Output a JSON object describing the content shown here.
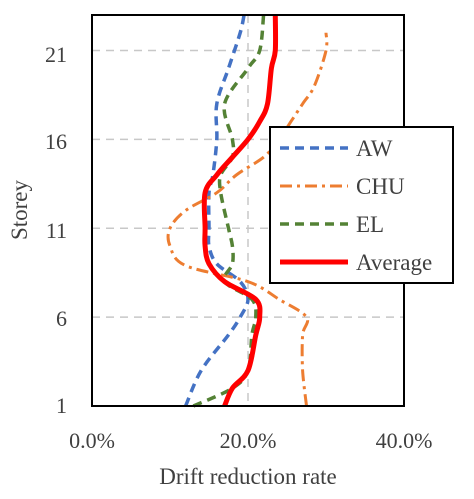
{
  "chart_data": {
    "type": "line",
    "xlabel": "Drift reduction rate",
    "ylabel": "Storey",
    "xlim": [
      0,
      0.4
    ],
    "ylim": [
      1,
      23
    ],
    "x_ticks": [
      "0.0%",
      "20.0%",
      "40.0%"
    ],
    "y_ticks": [
      "1",
      "6",
      "11",
      "16",
      "21"
    ],
    "grid": "dashed gray at x = 20% and at storeys 6, 11, 16, 21",
    "legend_position": "right, inside plot",
    "series": [
      {
        "name": "AW",
        "color": "#4472C4",
        "style": "dash",
        "points": [
          [
            0.12,
            1
          ],
          [
            0.14,
            3
          ],
          [
            0.175,
            5
          ],
          [
            0.19,
            6
          ],
          [
            0.2,
            7
          ],
          [
            0.19,
            8
          ],
          [
            0.16,
            9
          ],
          [
            0.15,
            10
          ],
          [
            0.15,
            11
          ],
          [
            0.15,
            13
          ],
          [
            0.155,
            14
          ],
          [
            0.16,
            16
          ],
          [
            0.16,
            18
          ],
          [
            0.175,
            20
          ],
          [
            0.19,
            22
          ],
          [
            0.195,
            23
          ]
        ]
      },
      {
        "name": "CHU",
        "color": "#ED7D31",
        "style": "dashdot",
        "points": [
          [
            0.275,
            1
          ],
          [
            0.27,
            3
          ],
          [
            0.27,
            5
          ],
          [
            0.275,
            6
          ],
          [
            0.24,
            7
          ],
          [
            0.2,
            8
          ],
          [
            0.12,
            8.9
          ],
          [
            0.1,
            10
          ],
          [
            0.1,
            11
          ],
          [
            0.12,
            12
          ],
          [
            0.16,
            13
          ],
          [
            0.185,
            14
          ],
          [
            0.22,
            15
          ],
          [
            0.24,
            16
          ],
          [
            0.255,
            17
          ],
          [
            0.27,
            18
          ],
          [
            0.285,
            19
          ],
          [
            0.3,
            21
          ],
          [
            0.3,
            22
          ]
        ]
      },
      {
        "name": "EL",
        "color": "#548235",
        "style": "dash",
        "points": [
          [
            0.13,
            1
          ],
          [
            0.18,
            2
          ],
          [
            0.2,
            3
          ],
          [
            0.205,
            5
          ],
          [
            0.21,
            6
          ],
          [
            0.205,
            7
          ],
          [
            0.17,
            8
          ],
          [
            0.18,
            9
          ],
          [
            0.18,
            10
          ],
          [
            0.175,
            11
          ],
          [
            0.165,
            13
          ],
          [
            0.165,
            14
          ],
          [
            0.18,
            15
          ],
          [
            0.18,
            16
          ],
          [
            0.17,
            18
          ],
          [
            0.2,
            20
          ],
          [
            0.215,
            21
          ],
          [
            0.22,
            23
          ]
        ]
      },
      {
        "name": "Average",
        "color": "#FF0000",
        "style": "solid",
        "points": [
          [
            0.17,
            1
          ],
          [
            0.18,
            2
          ],
          [
            0.2,
            3
          ],
          [
            0.21,
            5
          ],
          [
            0.215,
            6
          ],
          [
            0.21,
            7
          ],
          [
            0.17,
            8
          ],
          [
            0.15,
            9
          ],
          [
            0.145,
            10
          ],
          [
            0.145,
            11
          ],
          [
            0.145,
            13
          ],
          [
            0.16,
            14
          ],
          [
            0.18,
            15
          ],
          [
            0.2,
            16
          ],
          [
            0.215,
            17
          ],
          [
            0.225,
            18
          ],
          [
            0.23,
            20
          ],
          [
            0.235,
            21
          ],
          [
            0.235,
            23
          ]
        ]
      }
    ]
  }
}
